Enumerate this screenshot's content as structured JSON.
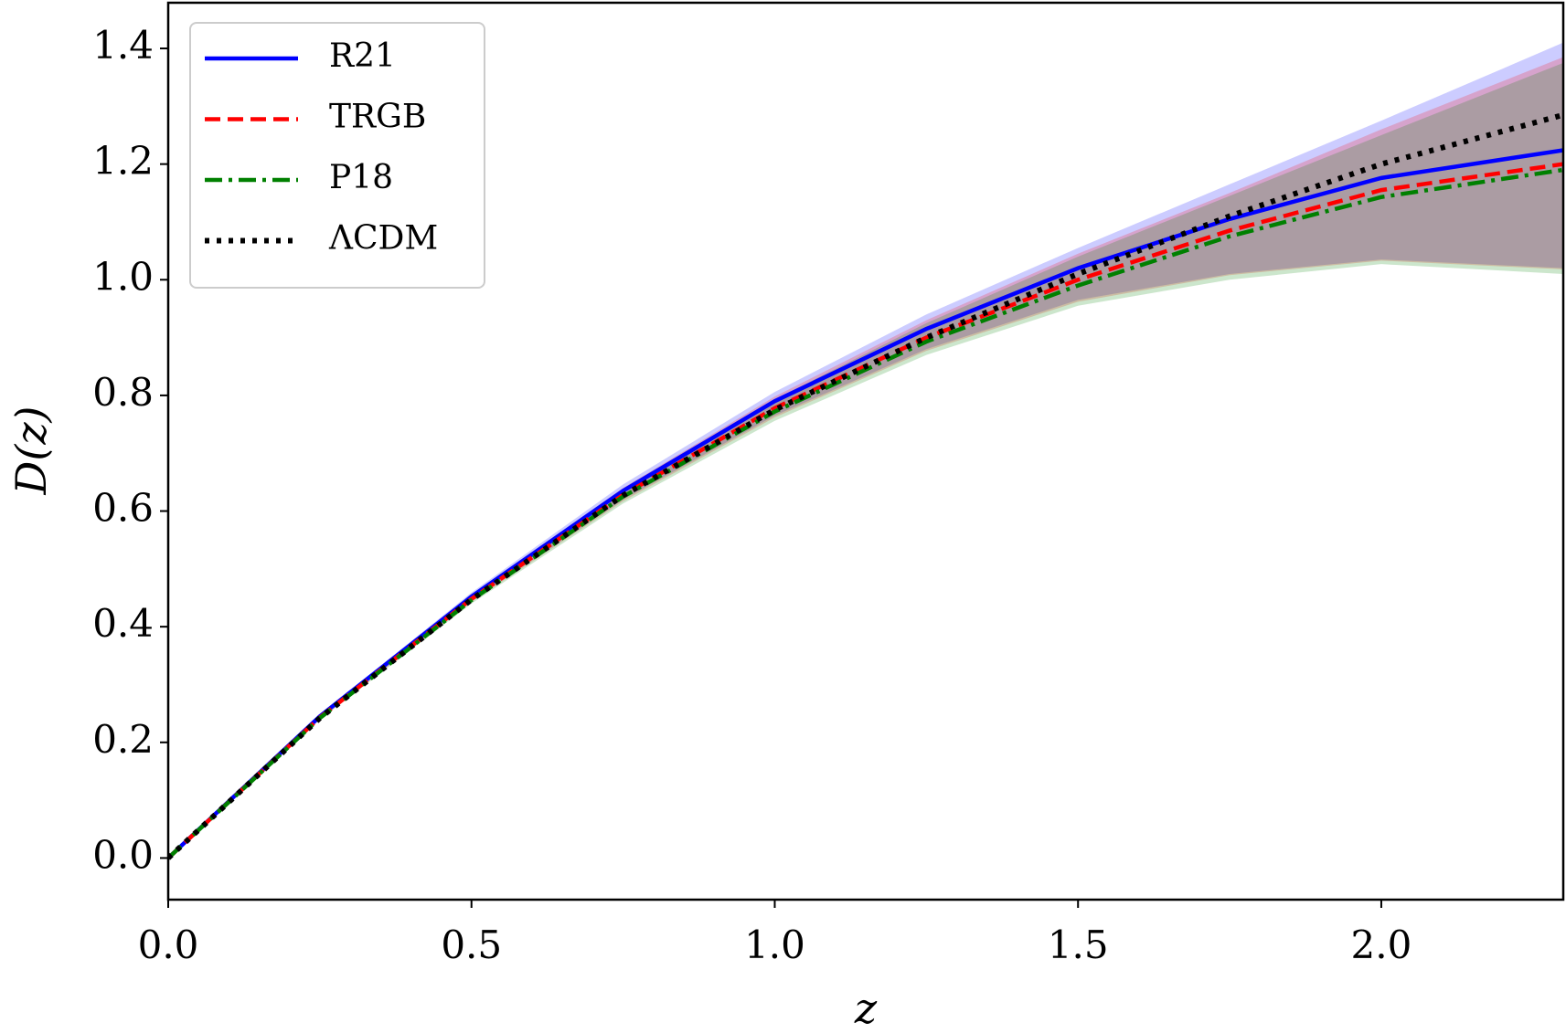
{
  "chart_data": {
    "type": "line",
    "x_label": "z",
    "y_label": "D(z)",
    "x": [
      0,
      0.25,
      0.5,
      0.75,
      1.0,
      1.25,
      1.5,
      1.75,
      2.0,
      2.3
    ],
    "series": [
      {
        "name": "R21",
        "color": "#0000ff",
        "linestyle": "solid",
        "values": [
          0,
          0.245,
          0.452,
          0.635,
          0.79,
          0.915,
          1.02,
          1.105,
          1.176,
          1.224
        ],
        "upper": [
          0,
          0.248,
          0.459,
          0.646,
          0.806,
          0.94,
          1.055,
          1.165,
          1.275,
          1.41
        ],
        "lower": [
          0,
          0.241,
          0.445,
          0.62,
          0.765,
          0.88,
          0.965,
          1.01,
          1.035,
          1.02
        ]
      },
      {
        "name": "TRGB",
        "color": "#ff0000",
        "linestyle": "dashed",
        "values": [
          0,
          0.243,
          0.448,
          0.628,
          0.778,
          0.9,
          1.0,
          1.085,
          1.155,
          1.2
        ],
        "upper": [
          0,
          0.246,
          0.455,
          0.64,
          0.798,
          0.93,
          1.045,
          1.15,
          1.26,
          1.385
        ],
        "lower": [
          0,
          0.24,
          0.443,
          0.617,
          0.762,
          0.877,
          0.962,
          1.008,
          1.033,
          1.018
        ]
      },
      {
        "name": "P18",
        "color": "#008000",
        "linestyle": "dashdot",
        "values": [
          0,
          0.242,
          0.446,
          0.625,
          0.772,
          0.893,
          0.99,
          1.075,
          1.143,
          1.19
        ],
        "upper": [
          0,
          0.245,
          0.453,
          0.637,
          0.793,
          0.925,
          1.04,
          1.145,
          1.25,
          1.375
        ],
        "lower": [
          0,
          0.239,
          0.44,
          0.613,
          0.756,
          0.87,
          0.955,
          1.0,
          1.027,
          1.01
        ]
      },
      {
        "name": "ΛCDM",
        "color": "#000000",
        "linestyle": "dotted",
        "values": [
          0,
          0.242,
          0.447,
          0.627,
          0.775,
          0.9,
          1.01,
          1.11,
          1.2,
          1.285
        ]
      }
    ],
    "xlim": [
      0,
      2.3
    ],
    "ylim": [
      -0.072,
      1.479
    ],
    "xticks": [
      {
        "value": 0,
        "label": "0.0"
      },
      0.5,
      {
        "value": 1,
        "label": "1.0"
      },
      1.5,
      {
        "value": 2,
        "label": "2.0"
      }
    ],
    "yticks": [
      {
        "value": 0,
        "label": "0.0"
      },
      0.2,
      0.4,
      0.6,
      0.8,
      {
        "value": 1,
        "label": "1.0"
      },
      1.2,
      1.4
    ],
    "legend": "upper left",
    "grid": false
  }
}
